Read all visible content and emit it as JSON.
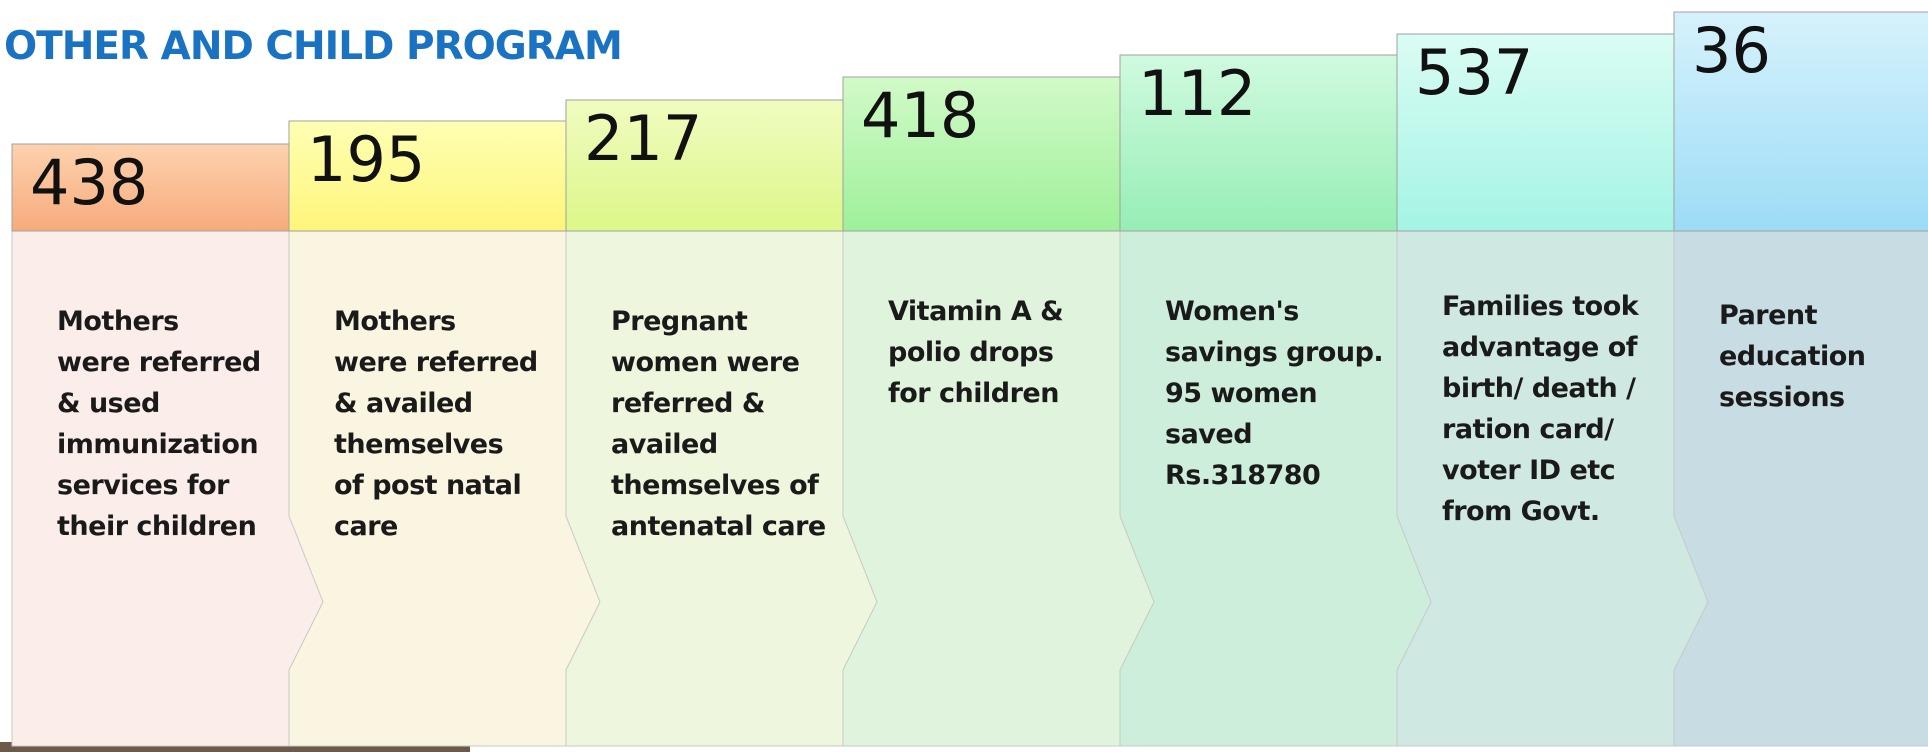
{
  "header": {
    "title": "OTHER AND CHILD PROGRAM"
  },
  "items": [
    {
      "number": 438,
      "lines": [
        "Mothers",
        "were referred",
        "& used",
        "immunization",
        "services  for",
        "their children"
      ]
    },
    {
      "number": 195,
      "lines": [
        "Mothers",
        "were referred",
        "& availed",
        "themselves",
        "of  post natal",
        "care"
      ]
    },
    {
      "number": 217,
      "lines": [
        "Pregnant",
        "women  were",
        "referred &",
        "availed",
        "themselves of",
        "antenatal care"
      ]
    },
    {
      "number": 418,
      "lines": [
        "Vitamin A &",
        "polio drops",
        "for children"
      ]
    },
    {
      "number": 112,
      "lines": [
        "Women's",
        "savings group.",
        "95 women",
        "saved",
        "Rs.318780"
      ]
    },
    {
      "number": 537,
      "lines": [
        "Families took",
        "advantage of",
        "birth/ death /",
        "ration card/",
        "voter ID etc",
        "from Govt."
      ]
    },
    {
      "number": 36,
      "lines": [
        "Parent",
        "education",
        "sessions"
      ]
    }
  ]
}
